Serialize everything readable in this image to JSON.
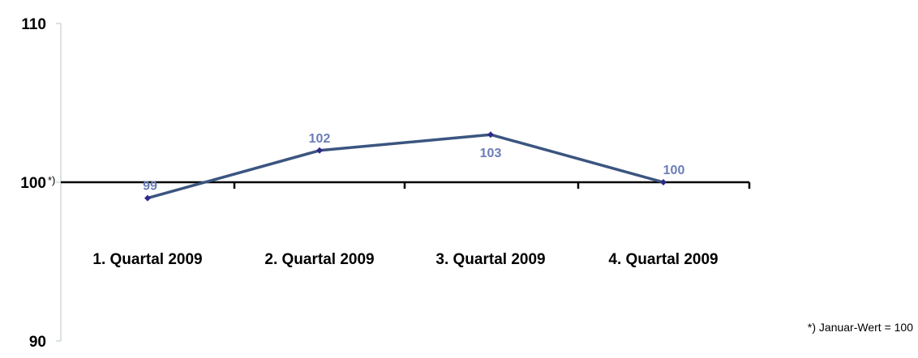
{
  "chart_data": {
    "type": "line",
    "categories": [
      "1. Quartal 2009",
      "2. Quartal 2009",
      "3. Quartal 2009",
      "4. Quartal 2009"
    ],
    "series": [
      {
        "values": [
          99,
          102,
          103,
          100
        ]
      }
    ],
    "data_labels": [
      "99",
      "102",
      "103",
      "100"
    ],
    "ylim": [
      90,
      110
    ],
    "yticks": [
      {
        "value": 90,
        "label": "90"
      },
      {
        "value": 100,
        "label": "100"
      },
      {
        "value": 110,
        "label": "110"
      }
    ],
    "baseline_value": 100,
    "baseline_note": "*)",
    "footnote": "*) Januar-Wert = 100",
    "grid": false,
    "colors": {
      "line": "#3b5580",
      "marker": "#2e2a8a",
      "label": "#6b7db8",
      "axis": "#000000",
      "y_axis": "#b8c4c4"
    }
  }
}
